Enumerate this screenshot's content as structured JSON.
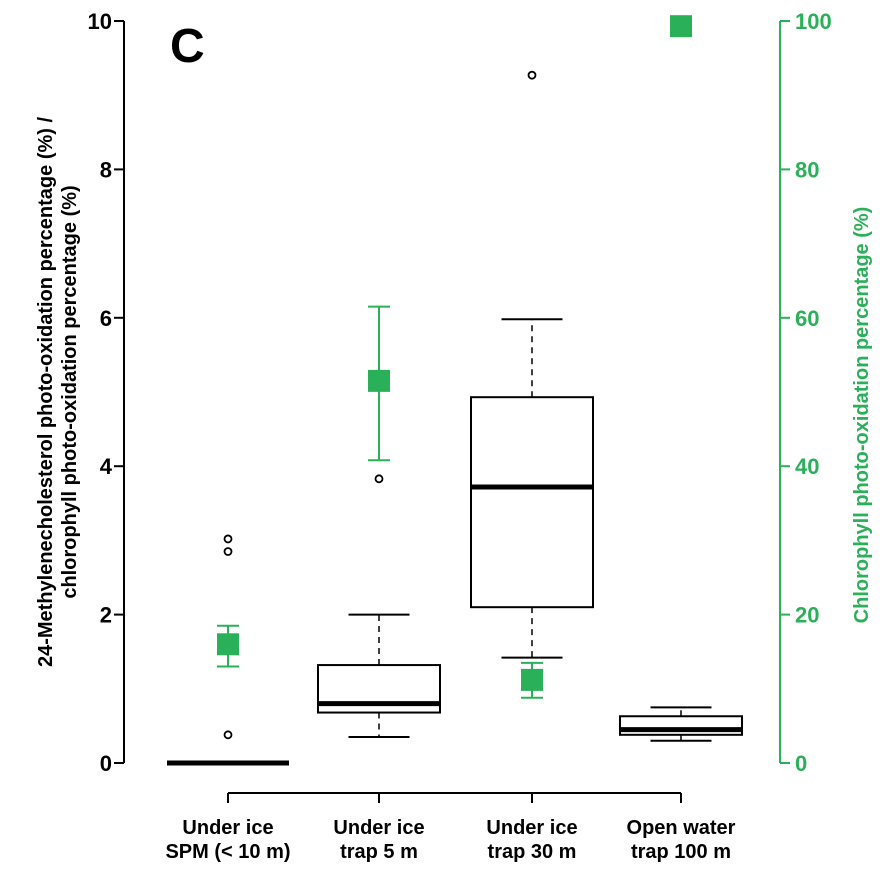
{
  "chart_data": {
    "type": "box",
    "panel_label": "C",
    "categories": [
      [
        "Under ice",
        "SPM (< 10 m)"
      ],
      [
        "Under ice",
        "trap 5 m"
      ],
      [
        "Under ice",
        "trap 30 m"
      ],
      [
        "Open water",
        "trap 100 m"
      ]
    ],
    "left_axis": {
      "label_lines": [
        "24-Methylenecholesterol photo-oxidation percentage (%) /",
        "chlorophyll photo-oxidation percentage (%)"
      ],
      "ylim": [
        0,
        10
      ],
      "ticks": [
        0,
        2,
        4,
        6,
        8,
        10
      ],
      "color": "#000000"
    },
    "right_axis": {
      "label": "Chlorophyll photo-oxidation percentage (%)",
      "ylim": [
        0,
        100
      ],
      "ticks": [
        0,
        20,
        40,
        60,
        80,
        100
      ],
      "color": "#2bb05a"
    },
    "box_series": [
      {
        "whisker_low": 0.0,
        "q1": 0.0,
        "median": 0.0,
        "q3": 0.0,
        "whisker_high": 0.0,
        "outliers": [
          0.38,
          2.85,
          3.02
        ]
      },
      {
        "whisker_low": 0.35,
        "q1": 0.68,
        "median": 0.8,
        "q3": 1.32,
        "whisker_high": 2.0,
        "outliers": [
          3.83
        ]
      },
      {
        "whisker_low": 1.42,
        "q1": 2.1,
        "median": 3.72,
        "q3": 4.93,
        "whisker_high": 5.98,
        "outliers": [
          9.27
        ]
      },
      {
        "whisker_low": 0.3,
        "q1": 0.38,
        "median": 0.45,
        "q3": 0.63,
        "whisker_high": 0.75,
        "outliers": []
      }
    ],
    "chlorophyll_series": [
      {
        "value": 16.0,
        "err_low": 13.0,
        "err_high": 18.5
      },
      {
        "value": 51.5,
        "err_low": 40.8,
        "err_high": 61.5
      },
      {
        "value": 11.2,
        "err_low": 8.8,
        "err_high": 13.5
      },
      {
        "value": 99.3,
        "err_low": 98.0,
        "err_high": 100.0
      }
    ]
  }
}
